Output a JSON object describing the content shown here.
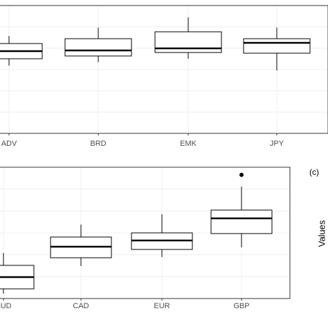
{
  "chart_data": [
    {
      "type": "box",
      "categories": [
        "ADV",
        "BRD",
        "EMK",
        "JPY"
      ],
      "series": [
        {
          "name": "min",
          "values": [
            98,
            103,
            108,
            91
          ]
        },
        {
          "name": "q1",
          "values": [
            108,
            112,
            117,
            116
          ]
        },
        {
          "name": "median",
          "values": [
            119,
            120,
            123,
            131
          ]
        },
        {
          "name": "q3",
          "values": [
            130,
            137,
            147,
            137
          ]
        },
        {
          "name": "max",
          "values": [
            141,
            153,
            168,
            153
          ]
        }
      ],
      "ylim": [
        0,
        185
      ]
    },
    {
      "type": "box",
      "categories": [
        "AUD",
        "CAD",
        "EUR",
        "GBP"
      ],
      "series": [
        {
          "name": "min",
          "values": [
            7,
            47,
            60,
            74
          ]
        },
        {
          "name": "q1",
          "values": [
            14,
            59,
            71,
            94
          ]
        },
        {
          "name": "median",
          "values": [
            31,
            75,
            84,
            116
          ]
        },
        {
          "name": "q3",
          "values": [
            48,
            89,
            95,
            128
          ]
        },
        {
          "name": "max",
          "values": [
            66,
            107,
            122,
            162
          ]
        }
      ],
      "outliers": [
        null,
        null,
        null,
        179
      ],
      "ylim": [
        0,
        190
      ]
    }
  ],
  "labels": {
    "panel": "(c)",
    "ylabel": "Values"
  }
}
